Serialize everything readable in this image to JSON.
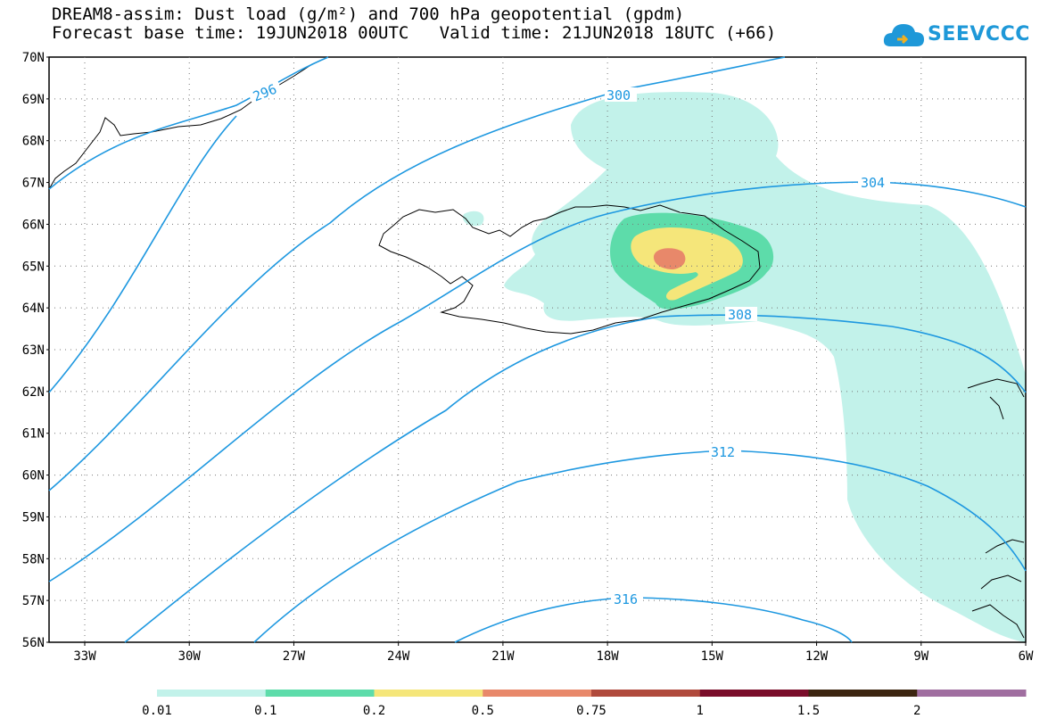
{
  "title": {
    "line1": "DREAM8-assim: Dust load (g/m²) and 700 hPa geopotential (gpdm)",
    "line2": "Forecast base time: 19JUN2018 00UTC   Valid time: 21JUN2018 18UTC (+66)"
  },
  "logo": {
    "text": "SEEVCCC",
    "icon": "cloud-icon",
    "color": "#1e98d8"
  },
  "map": {
    "lat_labels": [
      "70N",
      "69N",
      "68N",
      "67N",
      "66N",
      "65N",
      "64N",
      "63N",
      "62N",
      "61N",
      "60N",
      "59N",
      "58N",
      "57N",
      "56N"
    ],
    "lon_labels": [
      "33W",
      "30W",
      "27W",
      "24W",
      "21W",
      "18W",
      "15W",
      "12W",
      "9W",
      "6W"
    ],
    "contour_color": "#1e98e0",
    "contour_labels": [
      "296",
      "300",
      "304",
      "308",
      "312",
      "316"
    ]
  },
  "colorbar": {
    "labels": [
      "0.01",
      "0.1",
      "0.2",
      "0.5",
      "0.75",
      "1",
      "1.5",
      "2"
    ],
    "colors": [
      "#c2f2ea",
      "#5ddcaa",
      "#f5e67a",
      "#e8886a",
      "#b04a3c",
      "#7a0d2a",
      "#3c2510",
      "#a06ea0"
    ]
  }
}
